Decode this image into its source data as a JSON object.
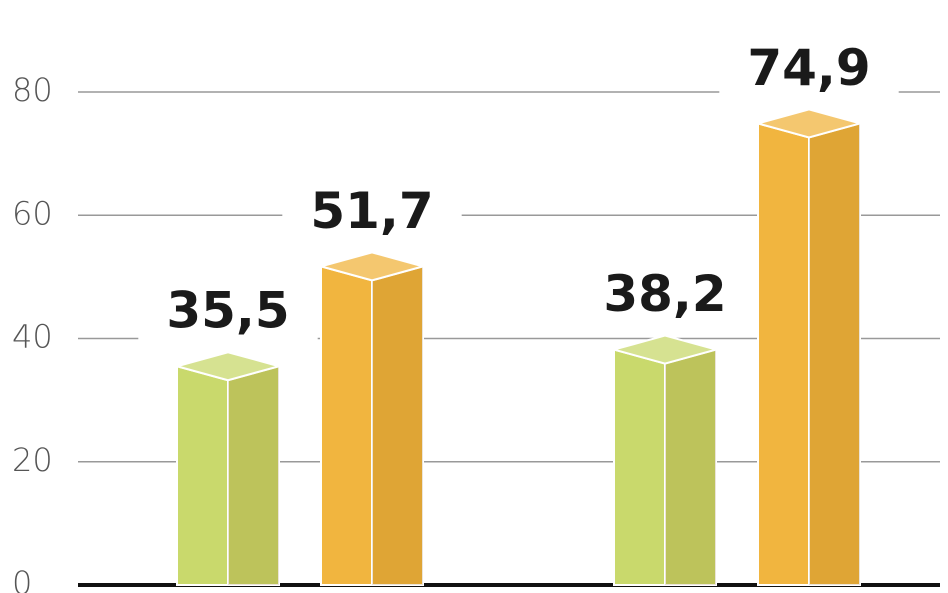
{
  "chart_data": {
    "type": "bar3d",
    "categories": [
      null,
      null
    ],
    "series": [
      {
        "color": "#c9d96c",
        "values": [
          35.5,
          38.2
        ],
        "value_labels": [
          "35,5",
          "38,2"
        ]
      },
      {
        "color": "#f1b53f",
        "values": [
          51.7,
          74.9
        ],
        "value_labels": [
          "51,7",
          "74,9"
        ]
      }
    ],
    "ylim": [
      0,
      80
    ],
    "yticks": [
      0,
      20,
      40,
      60,
      80
    ],
    "grid": true
  }
}
